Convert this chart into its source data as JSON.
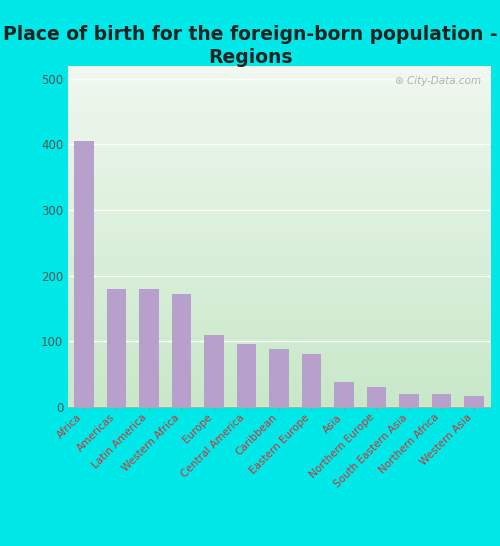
{
  "title": "Place of birth for the foreign-born population -\nRegions",
  "categories": [
    "Africa",
    "Americas",
    "Latin America",
    "Western Africa",
    "Europe",
    "Central America",
    "Caribbean",
    "Eastern Europe",
    "Asia",
    "Northern Europe",
    "South Eastern Asia",
    "Northern Africa",
    "Western Asia"
  ],
  "values": [
    405,
    180,
    180,
    172,
    110,
    95,
    88,
    80,
    37,
    30,
    20,
    20,
    17
  ],
  "bar_color": "#b8a0cc",
  "background_top": "#f0f8f0",
  "background_bottom": "#c8e8c8",
  "outer_background": "#00e8e8",
  "ylim": [
    0,
    520
  ],
  "yticks": [
    0,
    100,
    200,
    300,
    400,
    500
  ],
  "title_fontsize": 13.5,
  "title_color": "#222222",
  "tick_label_fontsize": 7.5,
  "ytick_color": "#555555",
  "xtick_color": "#cc3333"
}
